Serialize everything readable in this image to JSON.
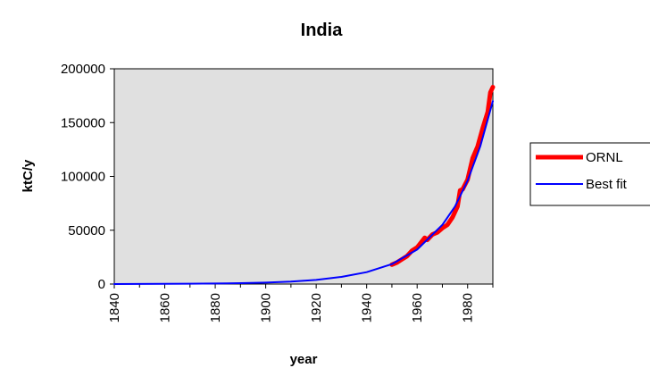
{
  "chart_data": {
    "type": "line",
    "title": "India",
    "xlabel": "year",
    "ylabel": "ktC/y",
    "xlim": [
      1840,
      1990
    ],
    "ylim": [
      0,
      200000
    ],
    "x_ticks": [
      1840,
      1860,
      1880,
      1900,
      1920,
      1940,
      1960,
      1980
    ],
    "y_ticks": [
      0,
      50000,
      100000,
      150000,
      200000
    ],
    "grid": false,
    "plot_background": "#e0e0e0",
    "legend_position": "right",
    "series": [
      {
        "name": "ORNL",
        "color": "#ff0000",
        "x": [
          1950,
          1952,
          1954,
          1956,
          1958,
          1960,
          1962,
          1963,
          1964,
          1966,
          1968,
          1970,
          1972,
          1974,
          1976,
          1977,
          1978,
          1980,
          1982,
          1984,
          1986,
          1988,
          1989,
          1990
        ],
        "y": [
          18000,
          20000,
          23000,
          26000,
          31000,
          34000,
          40000,
          43000,
          41000,
          46000,
          48000,
          52000,
          55000,
          62000,
          72000,
          87000,
          88000,
          97000,
          117000,
          128000,
          145000,
          160000,
          178000,
          183000
        ]
      },
      {
        "name": "Best fit",
        "color": "#0000ff",
        "x": [
          1840,
          1850,
          1860,
          1870,
          1880,
          1890,
          1900,
          1910,
          1920,
          1930,
          1940,
          1950,
          1960,
          1970,
          1975,
          1980,
          1985,
          1990
        ],
        "y": [
          0,
          50,
          150,
          300,
          500,
          800,
          1300,
          2200,
          3800,
          6600,
          11000,
          18500,
          32000,
          55000,
          72000,
          96000,
          128000,
          170000
        ]
      }
    ]
  }
}
